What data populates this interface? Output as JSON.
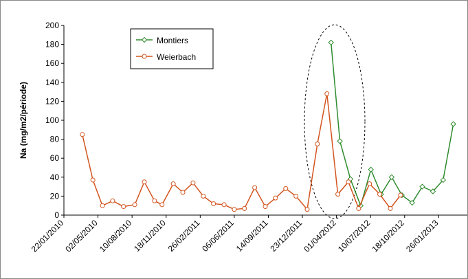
{
  "chart_data": {
    "type": "line",
    "y_label": "Na (mg/m2/période)",
    "ylim": [
      0,
      200
    ],
    "yticks": [
      0,
      20,
      40,
      60,
      80,
      100,
      120,
      140,
      160,
      180,
      200
    ],
    "xlim": [
      "22/01/2010",
      "20/04/2013"
    ],
    "xticks": [
      "22/01/2010",
      "02/05/2010",
      "10/08/2010",
      "18/11/2010",
      "26/02/2011",
      "06/06/2011",
      "14/09/2011",
      "23/12/2011",
      "01/04/2012",
      "10/07/2012",
      "18/10/2012",
      "26/01/2013"
    ],
    "legend": "upper-left",
    "series": [
      {
        "name": "Montiers",
        "color": "#2e8b2e",
        "marker": "diamond",
        "x": [
          "16/03/2012",
          "11/04/2012",
          "12/05/2012",
          "11/06/2012",
          "11/07/2012",
          "10/08/2012",
          "10/09/2012",
          "10/10/2012",
          "09/11/2012",
          "09/12/2012",
          "09/01/2013",
          "08/02/2013",
          "10/03/2013"
        ],
        "values": [
          182,
          78,
          38,
          10,
          48,
          22,
          40,
          21,
          13,
          30,
          25,
          37,
          96
        ]
      },
      {
        "name": "Weierbach",
        "color": "#d2541e",
        "marker": "circle",
        "x": [
          "17/03/2010",
          "17/04/2010",
          "15/05/2010",
          "14/06/2010",
          "16/07/2010",
          "18/08/2010",
          "15/09/2010",
          "15/10/2010",
          "06/11/2010",
          "09/12/2010",
          "06/01/2011",
          "05/02/2011",
          "07/03/2011",
          "06/04/2011",
          "07/05/2011",
          "06/06/2011",
          "06/07/2011",
          "05/08/2011",
          "05/09/2011",
          "05/10/2011",
          "04/11/2011",
          "04/12/2011",
          "06/01/2012",
          "05/02/2012",
          "04/03/2012",
          "05/04/2012",
          "06/05/2012",
          "05/06/2012",
          "07/07/2012",
          "06/08/2012",
          "06/09/2012",
          "06/10/2012"
        ],
        "values": [
          85,
          37,
          10,
          15,
          9,
          11,
          35,
          15,
          11,
          33,
          24,
          34,
          20,
          12,
          11,
          6,
          7,
          29,
          9,
          18,
          28,
          20,
          6,
          75,
          128,
          22,
          35,
          7,
          33,
          22,
          7,
          21
        ]
      }
    ]
  }
}
